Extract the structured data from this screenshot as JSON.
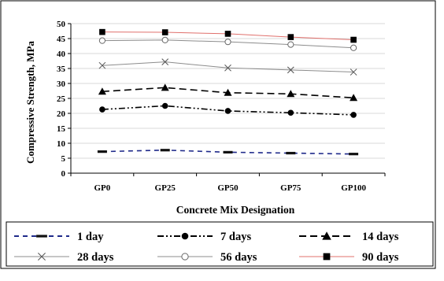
{
  "chart_data": {
    "type": "line",
    "categories": [
      "GP0",
      "GP25",
      "GP50",
      "GP75",
      "GP100"
    ],
    "xlabel": "Concrete Mix Designation",
    "ylabel": "Compressive Strength, MPa",
    "ylim": [
      0,
      50
    ],
    "yticks": [
      0,
      5,
      10,
      15,
      20,
      25,
      30,
      35,
      40,
      45,
      50
    ],
    "legend_position": "bottom",
    "series": [
      {
        "name": "1 day",
        "values": [
          7.2,
          7.7,
          7.0,
          6.7,
          6.4
        ],
        "color": "#1f2a8a",
        "dash": "short-dash",
        "marker": "dash"
      },
      {
        "name": "7 days",
        "values": [
          21.3,
          22.5,
          20.8,
          20.2,
          19.5
        ],
        "color": "#000000",
        "dash": "dash-dot-dot",
        "marker": "circle-filled"
      },
      {
        "name": "14 days",
        "values": [
          27.3,
          28.6,
          26.9,
          26.5,
          25.2
        ],
        "color": "#000000",
        "dash": "long-dash",
        "marker": "triangle-filled"
      },
      {
        "name": "28 days",
        "values": [
          36.0,
          37.2,
          35.2,
          34.5,
          33.8
        ],
        "color": "#8c8c8c",
        "dash": "solid",
        "marker": "x"
      },
      {
        "name": "56 days",
        "values": [
          44.3,
          44.5,
          43.9,
          43.0,
          41.9
        ],
        "color": "#8c8c8c",
        "dash": "solid",
        "marker": "circle-open"
      },
      {
        "name": "90 days",
        "values": [
          47.2,
          47.1,
          46.6,
          45.5,
          44.6
        ],
        "color": "#e0706c",
        "dash": "solid",
        "marker": "square-filled"
      }
    ]
  }
}
